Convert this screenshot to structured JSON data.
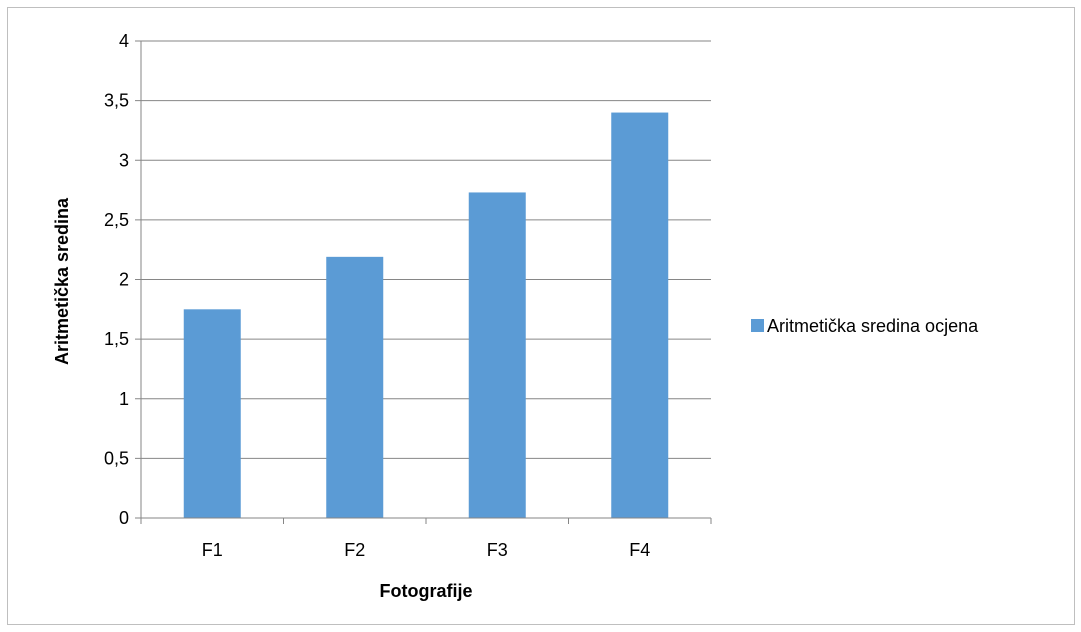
{
  "chart_data": {
    "type": "bar",
    "categories": [
      "F1",
      "F2",
      "F3",
      "F4"
    ],
    "series": [
      {
        "name": "Aritmetička sredina ocjena",
        "values": [
          1.75,
          2.19,
          2.73,
          3.4
        ],
        "color": "#5b9bd5"
      }
    ],
    "xlabel": "Fotografije",
    "ylabel": "Aritmetička sredina",
    "ylim": [
      0,
      4
    ],
    "yticks": [
      "0",
      "0,5",
      "1",
      "1,5",
      "2",
      "2,5",
      "3",
      "3,5",
      "4"
    ],
    "grid": true,
    "legend_position": "right"
  }
}
